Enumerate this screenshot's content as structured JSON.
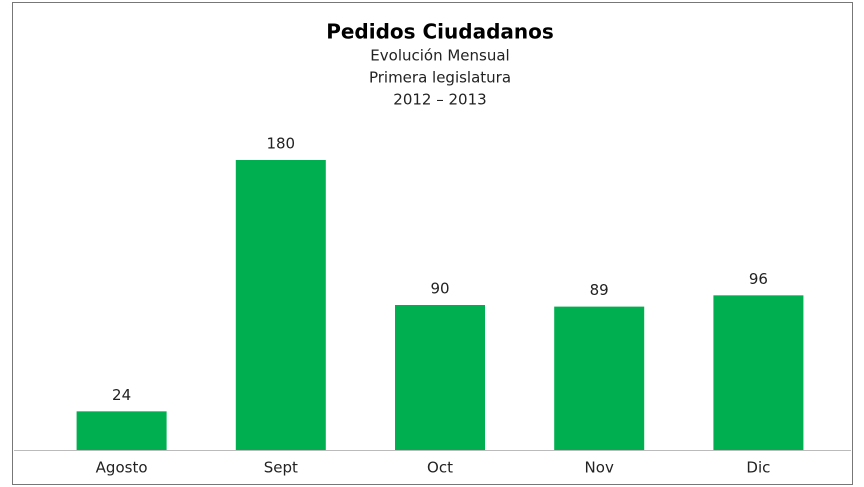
{
  "chart_data": {
    "type": "bar",
    "title": "Pedidos Ciudadanos",
    "subtitle": [
      "Evolución Mensual",
      "Primera legislatura",
      "2012 – 2013"
    ],
    "categories": [
      "Agosto",
      "Sept",
      "Oct",
      "Nov",
      "Dic"
    ],
    "values": [
      24,
      180,
      90,
      89,
      96
    ],
    "color": "#00b050"
  }
}
